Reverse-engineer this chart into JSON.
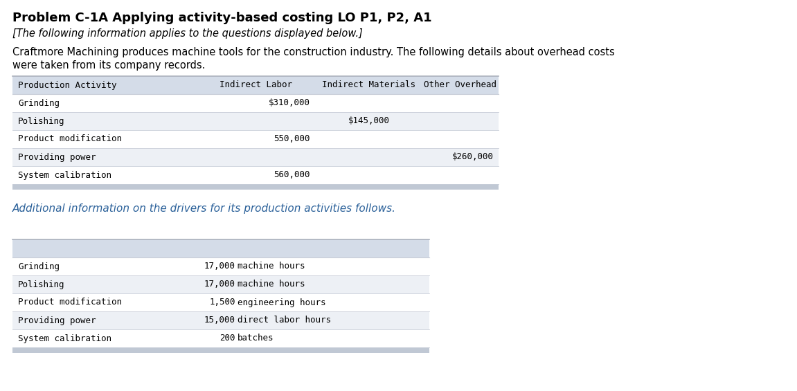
{
  "title": "Problem C-1A Applying activity-based costing LO P1, P2, A1",
  "subtitle": "[The following information applies to the questions displayed below.]",
  "body_text_line1": "Craftmore Machining produces machine tools for the construction industry. The following details about overhead costs",
  "body_text_line2": "were taken from its company records.",
  "table1_header": [
    "Production Activity",
    "Indirect Labor",
    "Indirect Materials",
    "Other Overhead"
  ],
  "table1_rows": [
    [
      "Grinding",
      "$310,000",
      "",
      ""
    ],
    [
      "Polishing",
      "",
      "$145,000",
      ""
    ],
    [
      "Product modification",
      "550,000",
      "",
      ""
    ],
    [
      "Providing power",
      "",
      "",
      "$260,000"
    ],
    [
      "System calibration",
      "560,000",
      "",
      ""
    ]
  ],
  "additional_text": "Additional information on the drivers for its production activities follows.",
  "table2_rows": [
    [
      "Grinding",
      "17,000",
      "machine hours"
    ],
    [
      "Polishing",
      "17,000",
      "machine hours"
    ],
    [
      "Product modification",
      "1,500",
      "engineering hours"
    ],
    [
      "Providing power",
      "15,000",
      "direct labor hours"
    ],
    [
      "System calibration",
      "200",
      "batches"
    ]
  ],
  "bg_color": "#ffffff",
  "table_header_bg": "#d4dce8",
  "table_row_bg_even": "#ffffff",
  "table_row_bg_odd": "#edf0f5",
  "table_border_top": "#aab0bc",
  "table_border_row": "#c8cdd8",
  "table_bottom_bar": "#c0c8d4",
  "text_color": "#000000",
  "additional_text_color": "#2a6099",
  "mono_font": "DejaVu Sans Mono",
  "sans_font": "DejaVu Sans",
  "title_fontsize": 13,
  "subtitle_fontsize": 10.5,
  "body_fontsize": 10.5,
  "table_fontsize": 9,
  "additional_fontsize": 11
}
